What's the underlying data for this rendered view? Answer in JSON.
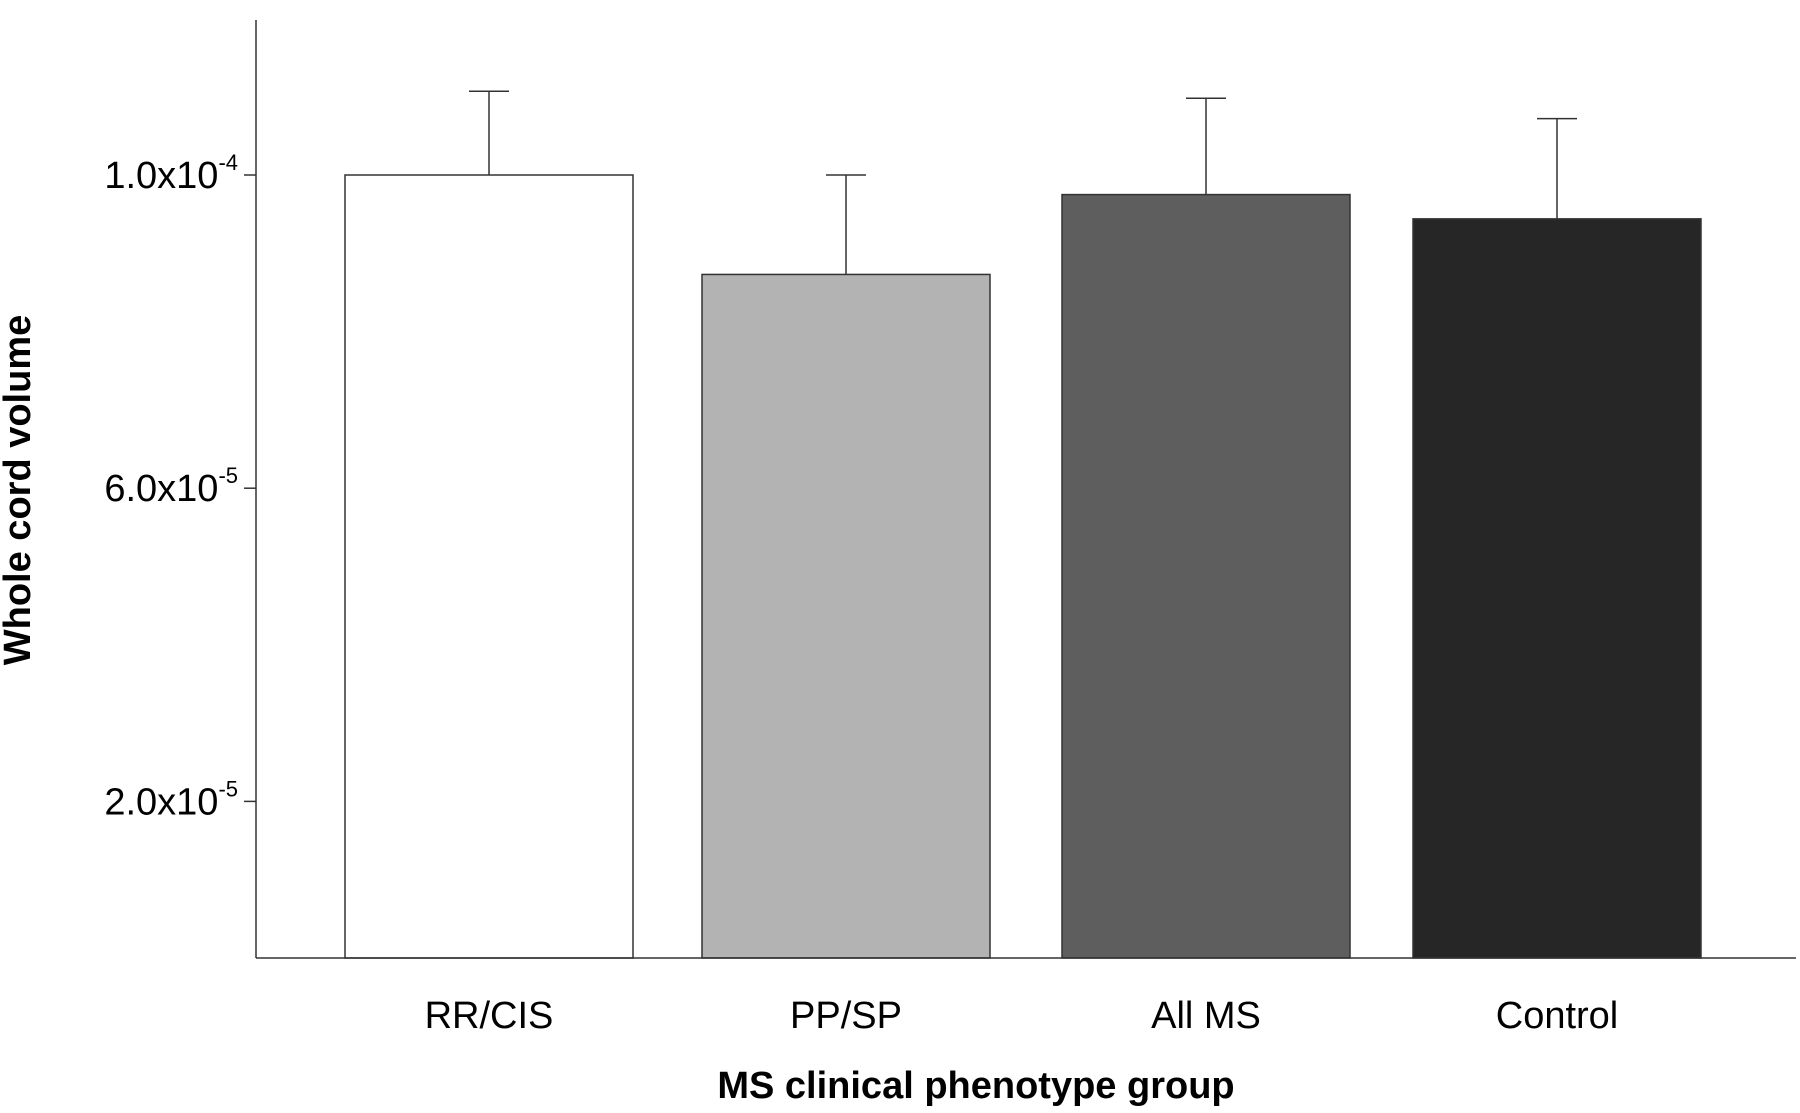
{
  "chart_data": {
    "type": "bar",
    "title": "",
    "xlabel": "MS clinical phenotype group",
    "ylabel": "Whole cord volume",
    "categories": [
      "RR/CIS",
      "PP/SP",
      "All MS",
      "Control"
    ],
    "values": [
      0.0001,
      8.73e-05,
      9.75e-05,
      9.44e-05
    ],
    "error_upper": [
      1.07e-05,
      1.27e-05,
      1.23e-05,
      1.28e-05
    ],
    "bar_colors": [
      "#ffffff",
      "#b3b3b3",
      "#5e5e5e",
      "#262626"
    ],
    "ylim": [
      0.0,
      0.00012
    ],
    "yticks": [
      {
        "value": 2e-05,
        "mantissa": "2.0x10",
        "exponent": "-5"
      },
      {
        "value": 6e-05,
        "mantissa": "6.0x10",
        "exponent": "-5"
      },
      {
        "value": 0.0001,
        "mantissa": "1.0x10",
        "exponent": "-4"
      }
    ],
    "grid": false,
    "legend": "none"
  }
}
